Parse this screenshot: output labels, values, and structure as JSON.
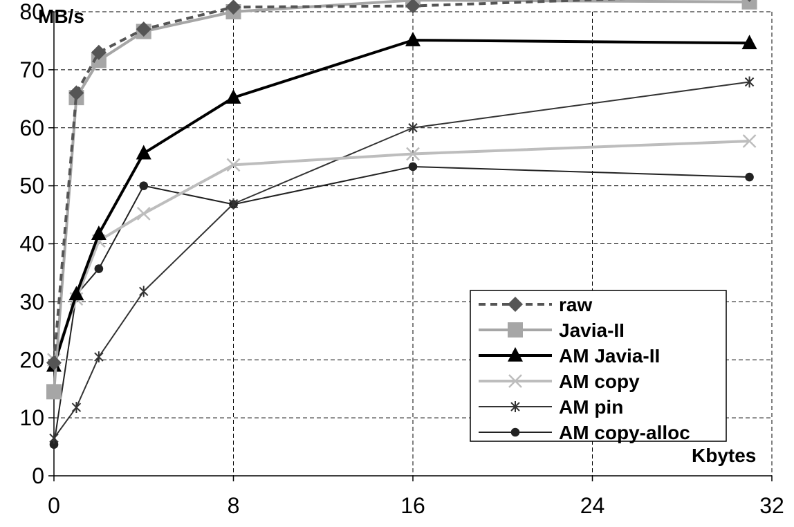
{
  "chart_data": {
    "type": "line",
    "xlabel": "Kbytes",
    "ylabel": "MB/s",
    "xlim": [
      0,
      32
    ],
    "ylim": [
      0,
      80
    ],
    "x_ticks": [
      0,
      8,
      16,
      24,
      32
    ],
    "y_ticks": [
      0,
      10,
      20,
      30,
      40,
      50,
      60,
      70,
      80
    ],
    "grid": true,
    "legend_position": "bottom-right",
    "series": [
      {
        "name": "raw",
        "color": "#555555",
        "line": "dashed",
        "marker": "diamond",
        "points": [
          [
            0,
            19.5
          ],
          [
            1,
            66
          ],
          [
            2,
            73
          ],
          [
            4,
            77
          ],
          [
            8,
            80.8
          ],
          [
            16,
            81
          ],
          [
            31,
            83
          ]
        ]
      },
      {
        "name": "Javia-II",
        "color": "#a6a6a6",
        "line": "solid",
        "marker": "square",
        "points": [
          [
            0,
            14.5
          ],
          [
            1,
            65.2
          ],
          [
            2,
            71.6
          ],
          [
            4,
            76.6
          ],
          [
            8,
            80
          ],
          [
            16,
            82
          ],
          [
            31,
            81.7
          ]
        ]
      },
      {
        "name": "AM Javia-II",
        "color": "#000000",
        "line": "solid",
        "marker": "triangle",
        "points": [
          [
            0,
            19
          ],
          [
            1,
            31.3
          ],
          [
            2,
            41.7
          ],
          [
            4,
            55.6
          ],
          [
            8,
            65.2
          ],
          [
            16,
            75.1
          ],
          [
            31,
            74.6
          ]
        ]
      },
      {
        "name": "AM copy",
        "color": "#bdbdbd",
        "line": "solid",
        "marker": "x",
        "points": [
          [
            0,
            20
          ],
          [
            1,
            30.5
          ],
          [
            2,
            40.5
          ],
          [
            4,
            45.2
          ],
          [
            8,
            53.6
          ],
          [
            16,
            55.5
          ],
          [
            31,
            57.7
          ]
        ]
      },
      {
        "name": "AM pin",
        "color": "#333333",
        "line": "solid",
        "marker": "asterisk",
        "points": [
          [
            0,
            6.5
          ],
          [
            1,
            11.8
          ],
          [
            2,
            20.5
          ],
          [
            4,
            31.8
          ],
          [
            8,
            46.9
          ],
          [
            16,
            60
          ],
          [
            31,
            67.9
          ]
        ]
      },
      {
        "name": "AM copy-alloc",
        "color": "#222222",
        "line": "solid",
        "marker": "circle",
        "points": [
          [
            0,
            5.4
          ],
          [
            1,
            31.2
          ],
          [
            2,
            35.7
          ],
          [
            4,
            50
          ],
          [
            8,
            46.8
          ],
          [
            16,
            53.3
          ],
          [
            31,
            51.5
          ]
        ]
      }
    ]
  }
}
